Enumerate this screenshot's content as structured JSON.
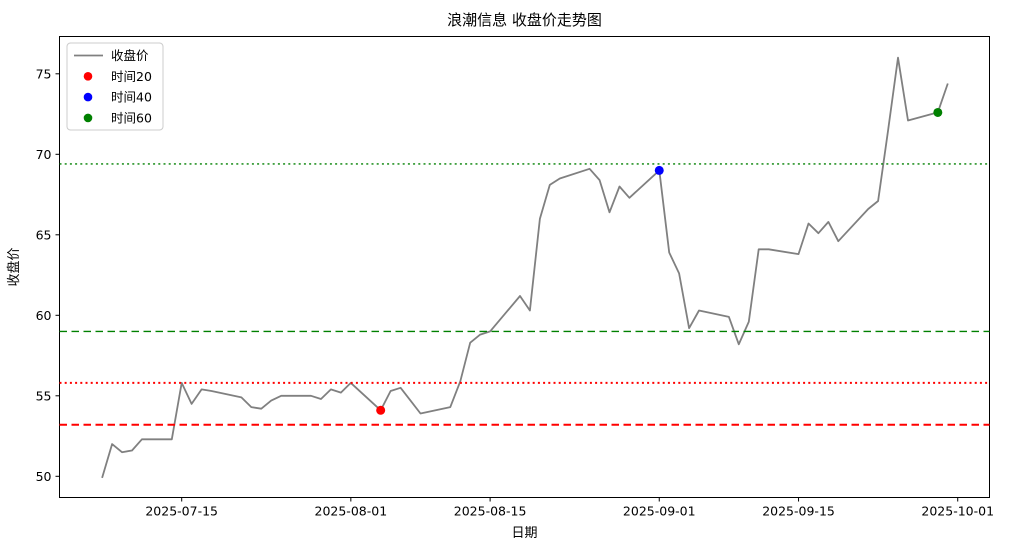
{
  "title": "浪潮信息 收盘价走势图",
  "axes": {
    "xlabel": "日期",
    "ylabel": "收盘价"
  },
  "legend": {
    "items": [
      {
        "label": "收盘价",
        "type": "line",
        "color": "#808080"
      },
      {
        "label": "时间20",
        "type": "dot",
        "color": "#ff0000"
      },
      {
        "label": "时间40",
        "type": "dot",
        "color": "#0000ff"
      },
      {
        "label": "时间60",
        "type": "dot",
        "color": "#008000"
      }
    ]
  },
  "chart_data": {
    "type": "line",
    "title": "浪潮信息 收盘价走势图",
    "xlabel": "日期",
    "ylabel": "收盘价",
    "x_ticks": [
      "2025-07-15",
      "2025-08-01",
      "2025-08-15",
      "2025-09-01",
      "2025-09-15",
      "2025-10-01"
    ],
    "y_ticks": [
      50,
      55,
      60,
      65,
      70,
      75
    ],
    "ylim": [
      48.5,
      77.4
    ],
    "grid": false,
    "legend_position": "upper-left",
    "series": [
      {
        "name": "收盘价",
        "color": "#808080",
        "dates": [
          "2025-07-07",
          "2025-07-08",
          "2025-07-09",
          "2025-07-10",
          "2025-07-11",
          "2025-07-14",
          "2025-07-15",
          "2025-07-16",
          "2025-07-17",
          "2025-07-18",
          "2025-07-21",
          "2025-07-22",
          "2025-07-23",
          "2025-07-24",
          "2025-07-25",
          "2025-07-28",
          "2025-07-29",
          "2025-07-30",
          "2025-07-31",
          "2025-08-01",
          "2025-08-04",
          "2025-08-05",
          "2025-08-06",
          "2025-08-07",
          "2025-08-08",
          "2025-08-11",
          "2025-08-12",
          "2025-08-13",
          "2025-08-14",
          "2025-08-15",
          "2025-08-18",
          "2025-08-19",
          "2025-08-20",
          "2025-08-21",
          "2025-08-22",
          "2025-08-25",
          "2025-08-26",
          "2025-08-27",
          "2025-08-28",
          "2025-08-29",
          "2025-09-01",
          "2025-09-02",
          "2025-09-03",
          "2025-09-04",
          "2025-09-05",
          "2025-09-08",
          "2025-09-09",
          "2025-09-10",
          "2025-09-11",
          "2025-09-12",
          "2025-09-15",
          "2025-09-16",
          "2025-09-17",
          "2025-09-18",
          "2025-09-19",
          "2025-09-22",
          "2025-09-23",
          "2025-09-24",
          "2025-09-25",
          "2025-09-26",
          "2025-09-29",
          "2025-09-30"
        ],
        "values": [
          49.9,
          52.0,
          51.5,
          51.6,
          52.3,
          52.3,
          55.8,
          54.5,
          55.4,
          55.3,
          54.9,
          54.3,
          54.2,
          54.7,
          55.0,
          55.0,
          54.8,
          55.4,
          55.2,
          55.8,
          54.1,
          55.3,
          55.5,
          54.7,
          53.9,
          54.3,
          55.9,
          58.3,
          58.8,
          59.0,
          61.2,
          60.3,
          66.0,
          68.1,
          68.5,
          69.1,
          68.4,
          66.4,
          68.0,
          67.3,
          69.0,
          63.9,
          62.6,
          59.2,
          60.3,
          59.9,
          58.2,
          59.6,
          64.1,
          64.1,
          63.8,
          65.7,
          65.1,
          65.8,
          64.6,
          66.6,
          67.1,
          71.5,
          76.0,
          72.1,
          72.6,
          74.4
        ]
      }
    ],
    "markers": [
      {
        "name": "时间20",
        "date": "2025-08-04",
        "value": 54.1,
        "color": "#ff0000"
      },
      {
        "name": "时间40",
        "date": "2025-09-01",
        "value": 69.0,
        "color": "#0000ff"
      },
      {
        "name": "时间60",
        "date": "2025-09-29",
        "value": 72.6,
        "color": "#008000"
      }
    ],
    "hlines": [
      {
        "value": 53.2,
        "color": "#ff0000",
        "style": "dashed"
      },
      {
        "value": 55.8,
        "color": "#ff0000",
        "style": "dotted"
      },
      {
        "value": 59.0,
        "color": "#008000",
        "style": "dashed"
      },
      {
        "value": 69.4,
        "color": "#008000",
        "style": "dotted"
      }
    ]
  }
}
